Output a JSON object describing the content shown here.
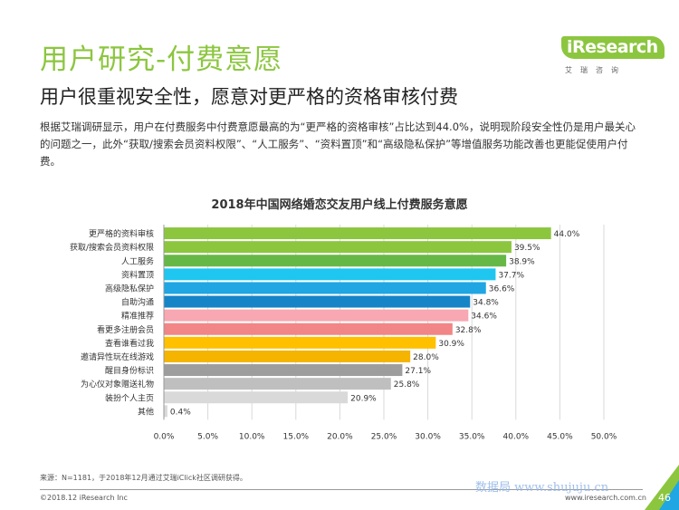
{
  "header": {
    "title": "用户研究-付费意愿",
    "subtitle": "用户很重视安全性，愿意对更严格的资格审核付费",
    "body": "根据艾瑞调研显示，用户在付费服务中付费意愿最高的为“更严格的资格审核”占比达到44.0%，说明现阶段安全性仍是用户最关心的问题之一，此外“获取/搜索会员资料权限”、“人工服务”、“资料置顶”和“高级隐私保护”等增值服务功能改善也更能促使用户付费。"
  },
  "logo": {
    "brand": "iResearch",
    "sub": "艾瑞咨询"
  },
  "chart_data": {
    "type": "bar",
    "orientation": "horizontal",
    "title": "2018年中国网络婚恋交友用户线上付费服务意愿",
    "categories": [
      "更严格的资料审核",
      "获取/搜索会员资料权限",
      "人工服务",
      "资料置顶",
      "高级隐私保护",
      "自助沟通",
      "精准推荐",
      "看更多注册会员",
      "查看谁看过我",
      "邀请异性玩在线游戏",
      "醒目身份标识",
      "为心仪对象赠送礼物",
      "装扮个人主页",
      "其他"
    ],
    "values": [
      44.0,
      39.5,
      38.9,
      37.7,
      36.6,
      34.8,
      34.6,
      32.8,
      30.9,
      28.0,
      27.1,
      25.8,
      20.9,
      0.4
    ],
    "value_labels": [
      "44.0%",
      "39.5%",
      "38.9%",
      "37.7%",
      "36.6%",
      "34.8%",
      "34.6%",
      "32.8%",
      "30.9%",
      "28.0%",
      "27.1%",
      "25.8%",
      "20.9%",
      "0.4%"
    ],
    "colors": [
      "#8cc63f",
      "#8cc63f",
      "#66b846",
      "#1fc6f0",
      "#1fa6e3",
      "#1685c7",
      "#f7a8b2",
      "#f28585",
      "#ffc000",
      "#f4b400",
      "#9d9d9d",
      "#bfbfbf",
      "#d9d9d9",
      "#d9d9d9"
    ],
    "xlim": [
      0,
      50
    ],
    "ticks": [
      0,
      5,
      10,
      15,
      20,
      25,
      30,
      35,
      40,
      45,
      50
    ],
    "tick_labels": [
      "0.0%",
      "5.0%",
      "10.0%",
      "15.0%",
      "20.0%",
      "25.0%",
      "30.0%",
      "35.0%",
      "40.0%",
      "45.0%",
      "50.0%"
    ],
    "grid": true,
    "legend": "none"
  },
  "footer": {
    "source": "来源：N=1181，于2018年12月通过艾瑞iClick社区调研获得。",
    "copyright": "©2018.12 iResearch Inc",
    "website": "www.iresearch.com.cn",
    "page": "46",
    "watermark": "数据局 www.shujuju.cn"
  },
  "theme": {
    "accent": "#8cc63f"
  }
}
